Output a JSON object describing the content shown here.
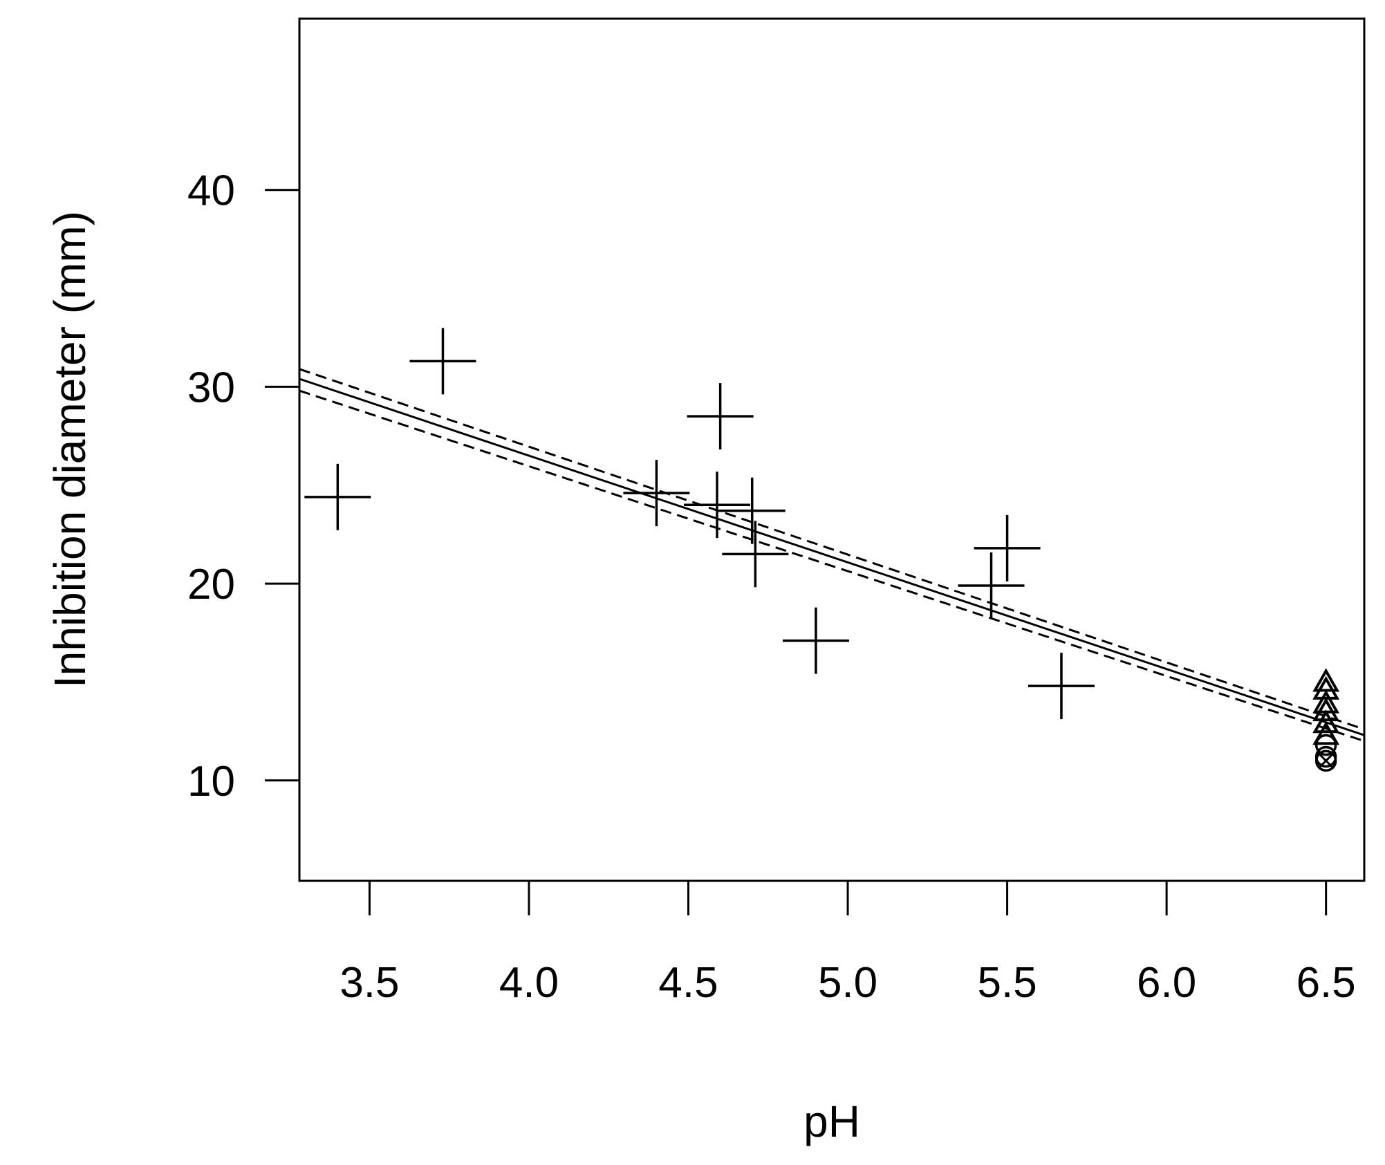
{
  "chart_data": {
    "type": "scatter",
    "title": "",
    "xlabel": "pH",
    "ylabel": "Inhibition diameter (mm)",
    "xlim": [
      3.28,
      6.62
    ],
    "ylim": [
      4.9,
      48.7
    ],
    "xticks": [
      "3.5",
      "4.0",
      "4.5",
      "5.0",
      "5.5",
      "6.0",
      "6.5"
    ],
    "yticks": [
      "10",
      "20",
      "30",
      "40"
    ],
    "grid": false,
    "legend": "none",
    "series": [
      {
        "marker": "plus",
        "points": [
          {
            "x": 3.4,
            "y": 24.4
          },
          {
            "x": 3.73,
            "y": 31.3
          },
          {
            "x": 4.4,
            "y": 24.6
          },
          {
            "x": 4.59,
            "y": 24.0
          },
          {
            "x": 4.6,
            "y": 28.5
          },
          {
            "x": 4.7,
            "y": 23.7
          },
          {
            "x": 4.71,
            "y": 21.5
          },
          {
            "x": 4.9,
            "y": 17.1
          },
          {
            "x": 5.45,
            "y": 19.9
          },
          {
            "x": 5.5,
            "y": 21.8
          },
          {
            "x": 5.67,
            "y": 14.8
          }
        ]
      },
      {
        "marker": "triangle",
        "points": [
          {
            "x": 6.5,
            "y": 15.0
          },
          {
            "x": 6.5,
            "y": 14.6
          },
          {
            "x": 6.5,
            "y": 13.9
          },
          {
            "x": 6.5,
            "y": 13.5
          },
          {
            "x": 6.5,
            "y": 12.9
          },
          {
            "x": 6.5,
            "y": 12.3
          }
        ]
      },
      {
        "marker": "circle",
        "points": [
          {
            "x": 6.5,
            "y": 11.8
          },
          {
            "x": 6.5,
            "y": 11.2
          }
        ]
      },
      {
        "marker": "circle-x",
        "points": [
          {
            "x": 6.5,
            "y": 11.0
          }
        ]
      }
    ],
    "lines": [
      {
        "style": "solid",
        "x": [
          3.28,
          6.62
        ],
        "y": [
          30.4,
          12.3
        ]
      },
      {
        "style": "dashed",
        "x": [
          3.28,
          6.62
        ],
        "y": [
          30.9,
          12.6
        ]
      },
      {
        "style": "dashed",
        "x": [
          3.28,
          6.62
        ],
        "y": [
          29.8,
          12.0
        ]
      }
    ]
  }
}
